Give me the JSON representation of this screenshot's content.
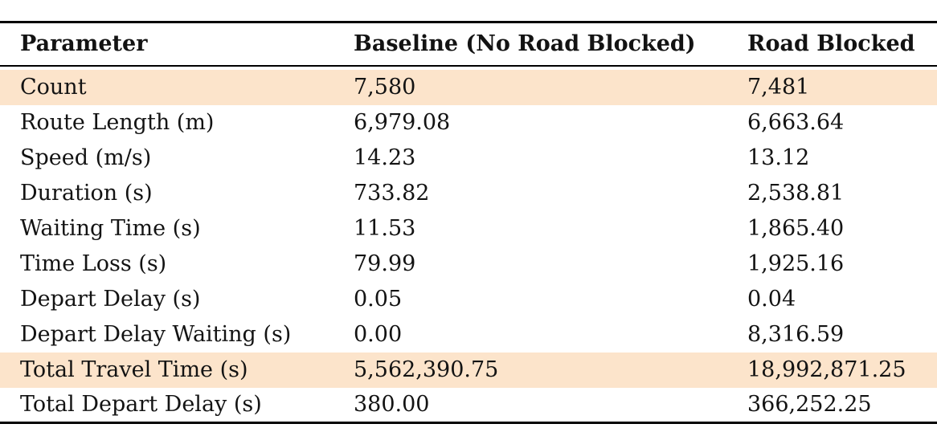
{
  "table": {
    "columns": [
      "Parameter",
      "Baseline (No Road Blocked)",
      "Road Blocked"
    ],
    "rows": [
      {
        "parameter": "Count",
        "baseline": "7,580",
        "blocked": "7,481",
        "highlight": true
      },
      {
        "parameter": "Route Length (m)",
        "baseline": "6,979.08",
        "blocked": "6,663.64",
        "highlight": false
      },
      {
        "parameter": "Speed (m/s)",
        "baseline": "14.23",
        "blocked": "13.12",
        "highlight": false
      },
      {
        "parameter": "Duration (s)",
        "baseline": "733.82",
        "blocked": "2,538.81",
        "highlight": false
      },
      {
        "parameter": "Waiting Time (s)",
        "baseline": "11.53",
        "blocked": "1,865.40",
        "highlight": false
      },
      {
        "parameter": "Time Loss (s)",
        "baseline": "79.99",
        "blocked": "1,925.16",
        "highlight": false
      },
      {
        "parameter": "Depart Delay (s)",
        "baseline": "0.05",
        "blocked": "0.04",
        "highlight": false
      },
      {
        "parameter": "Depart Delay Waiting (s)",
        "baseline": "0.00",
        "blocked": "8,316.59",
        "highlight": false
      },
      {
        "parameter": "Total Travel Time (s)",
        "baseline": "5,562,390.75",
        "blocked": "18,992,871.25",
        "highlight": true
      },
      {
        "parameter": "Total Depart Delay (s)",
        "baseline": "380.00",
        "blocked": "366,252.25",
        "highlight": false
      }
    ],
    "highlight_color": "#fce4cb",
    "rule_color": "#000000",
    "text_color": "#131313"
  }
}
